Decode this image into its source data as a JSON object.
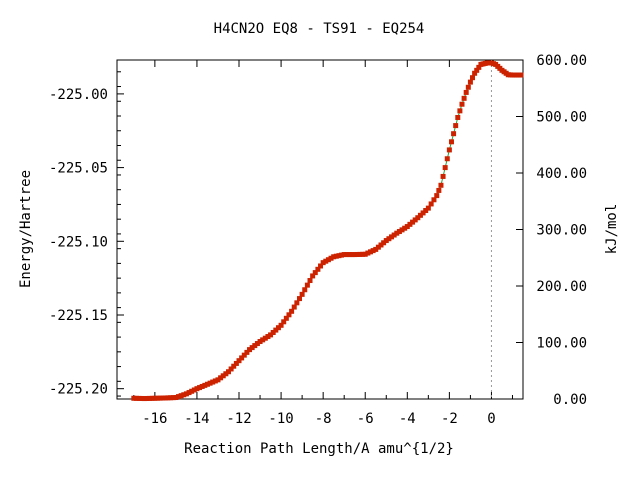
{
  "chart_data": {
    "type": "line",
    "title": "H4CN2O   EQ8 - TS91 - EQ254",
    "xlabel": "Reaction Path Length/A amu^{1/2}",
    "ylabel": "Energy/Hartree",
    "y2label": "kJ/mol",
    "xlim": [
      -17.8,
      1.5
    ],
    "ylim": [
      -225.207,
      -224.977
    ],
    "y2lim": [
      0,
      600
    ],
    "x_ticks": [
      -16,
      -14,
      -12,
      -10,
      -8,
      -6,
      -4,
      -2,
      0
    ],
    "x_tick_labels": [
      "-16",
      "-14",
      "-12",
      "-10",
      "-8",
      "-6",
      "-4",
      "-2",
      "0"
    ],
    "y_ticks": [
      -225.2,
      -225.15,
      -225.1,
      -225.05,
      -225.0
    ],
    "y_tick_labels": [
      "-225.20",
      "-225.15",
      "-225.10",
      "-225.05",
      "-225.00"
    ],
    "y2_ticks": [
      0,
      100,
      200,
      300,
      400,
      500,
      600
    ],
    "y2_tick_labels": [
      "0.00",
      "100.00",
      "200.00",
      "300.00",
      "400.00",
      "500.00",
      "600.00"
    ],
    "vertical_reference_x": 0,
    "grid": false,
    "line_color": "#2ca02c",
    "marker_color": "#cc2200",
    "reference_line_color": "#999999",
    "series": [
      {
        "x": [
          -17.0,
          -16.5,
          -16.0,
          -15.5,
          -15.0,
          -14.5,
          -14.0,
          -13.5,
          -13.0,
          -12.5,
          -12.0,
          -11.5,
          -11.0,
          -10.5,
          -10.0,
          -9.5,
          -9.0,
          -8.5,
          -8.0,
          -7.5,
          -7.0,
          -6.5,
          -6.0,
          -5.5,
          -5.0,
          -4.5,
          -4.0,
          -3.5,
          -3.0,
          -2.6,
          -2.4,
          -2.2,
          -2.0,
          -1.8,
          -1.6,
          -1.4,
          -1.2,
          -1.0,
          -0.8,
          -0.5,
          -0.2,
          0.0,
          0.2,
          0.5,
          0.8,
          1.0,
          1.2,
          1.4
        ],
        "y": [
          -225.2065,
          -225.2067,
          -225.2065,
          -225.2063,
          -225.206,
          -225.2035,
          -225.2,
          -225.197,
          -225.194,
          -225.1885,
          -225.181,
          -225.1735,
          -225.168,
          -225.1635,
          -225.157,
          -225.1475,
          -225.136,
          -225.1235,
          -225.1145,
          -225.1105,
          -225.109,
          -225.109,
          -225.1088,
          -225.1055,
          -225.0995,
          -225.0945,
          -225.09,
          -225.084,
          -225.0775,
          -225.069,
          -225.062,
          -225.05,
          -225.038,
          -225.027,
          -225.016,
          -225.007,
          -224.999,
          -224.992,
          -224.986,
          -224.98,
          -224.979,
          -224.979,
          -224.98,
          -224.984,
          -224.987,
          -224.9872,
          -224.9872,
          -224.9872
        ]
      }
    ]
  }
}
